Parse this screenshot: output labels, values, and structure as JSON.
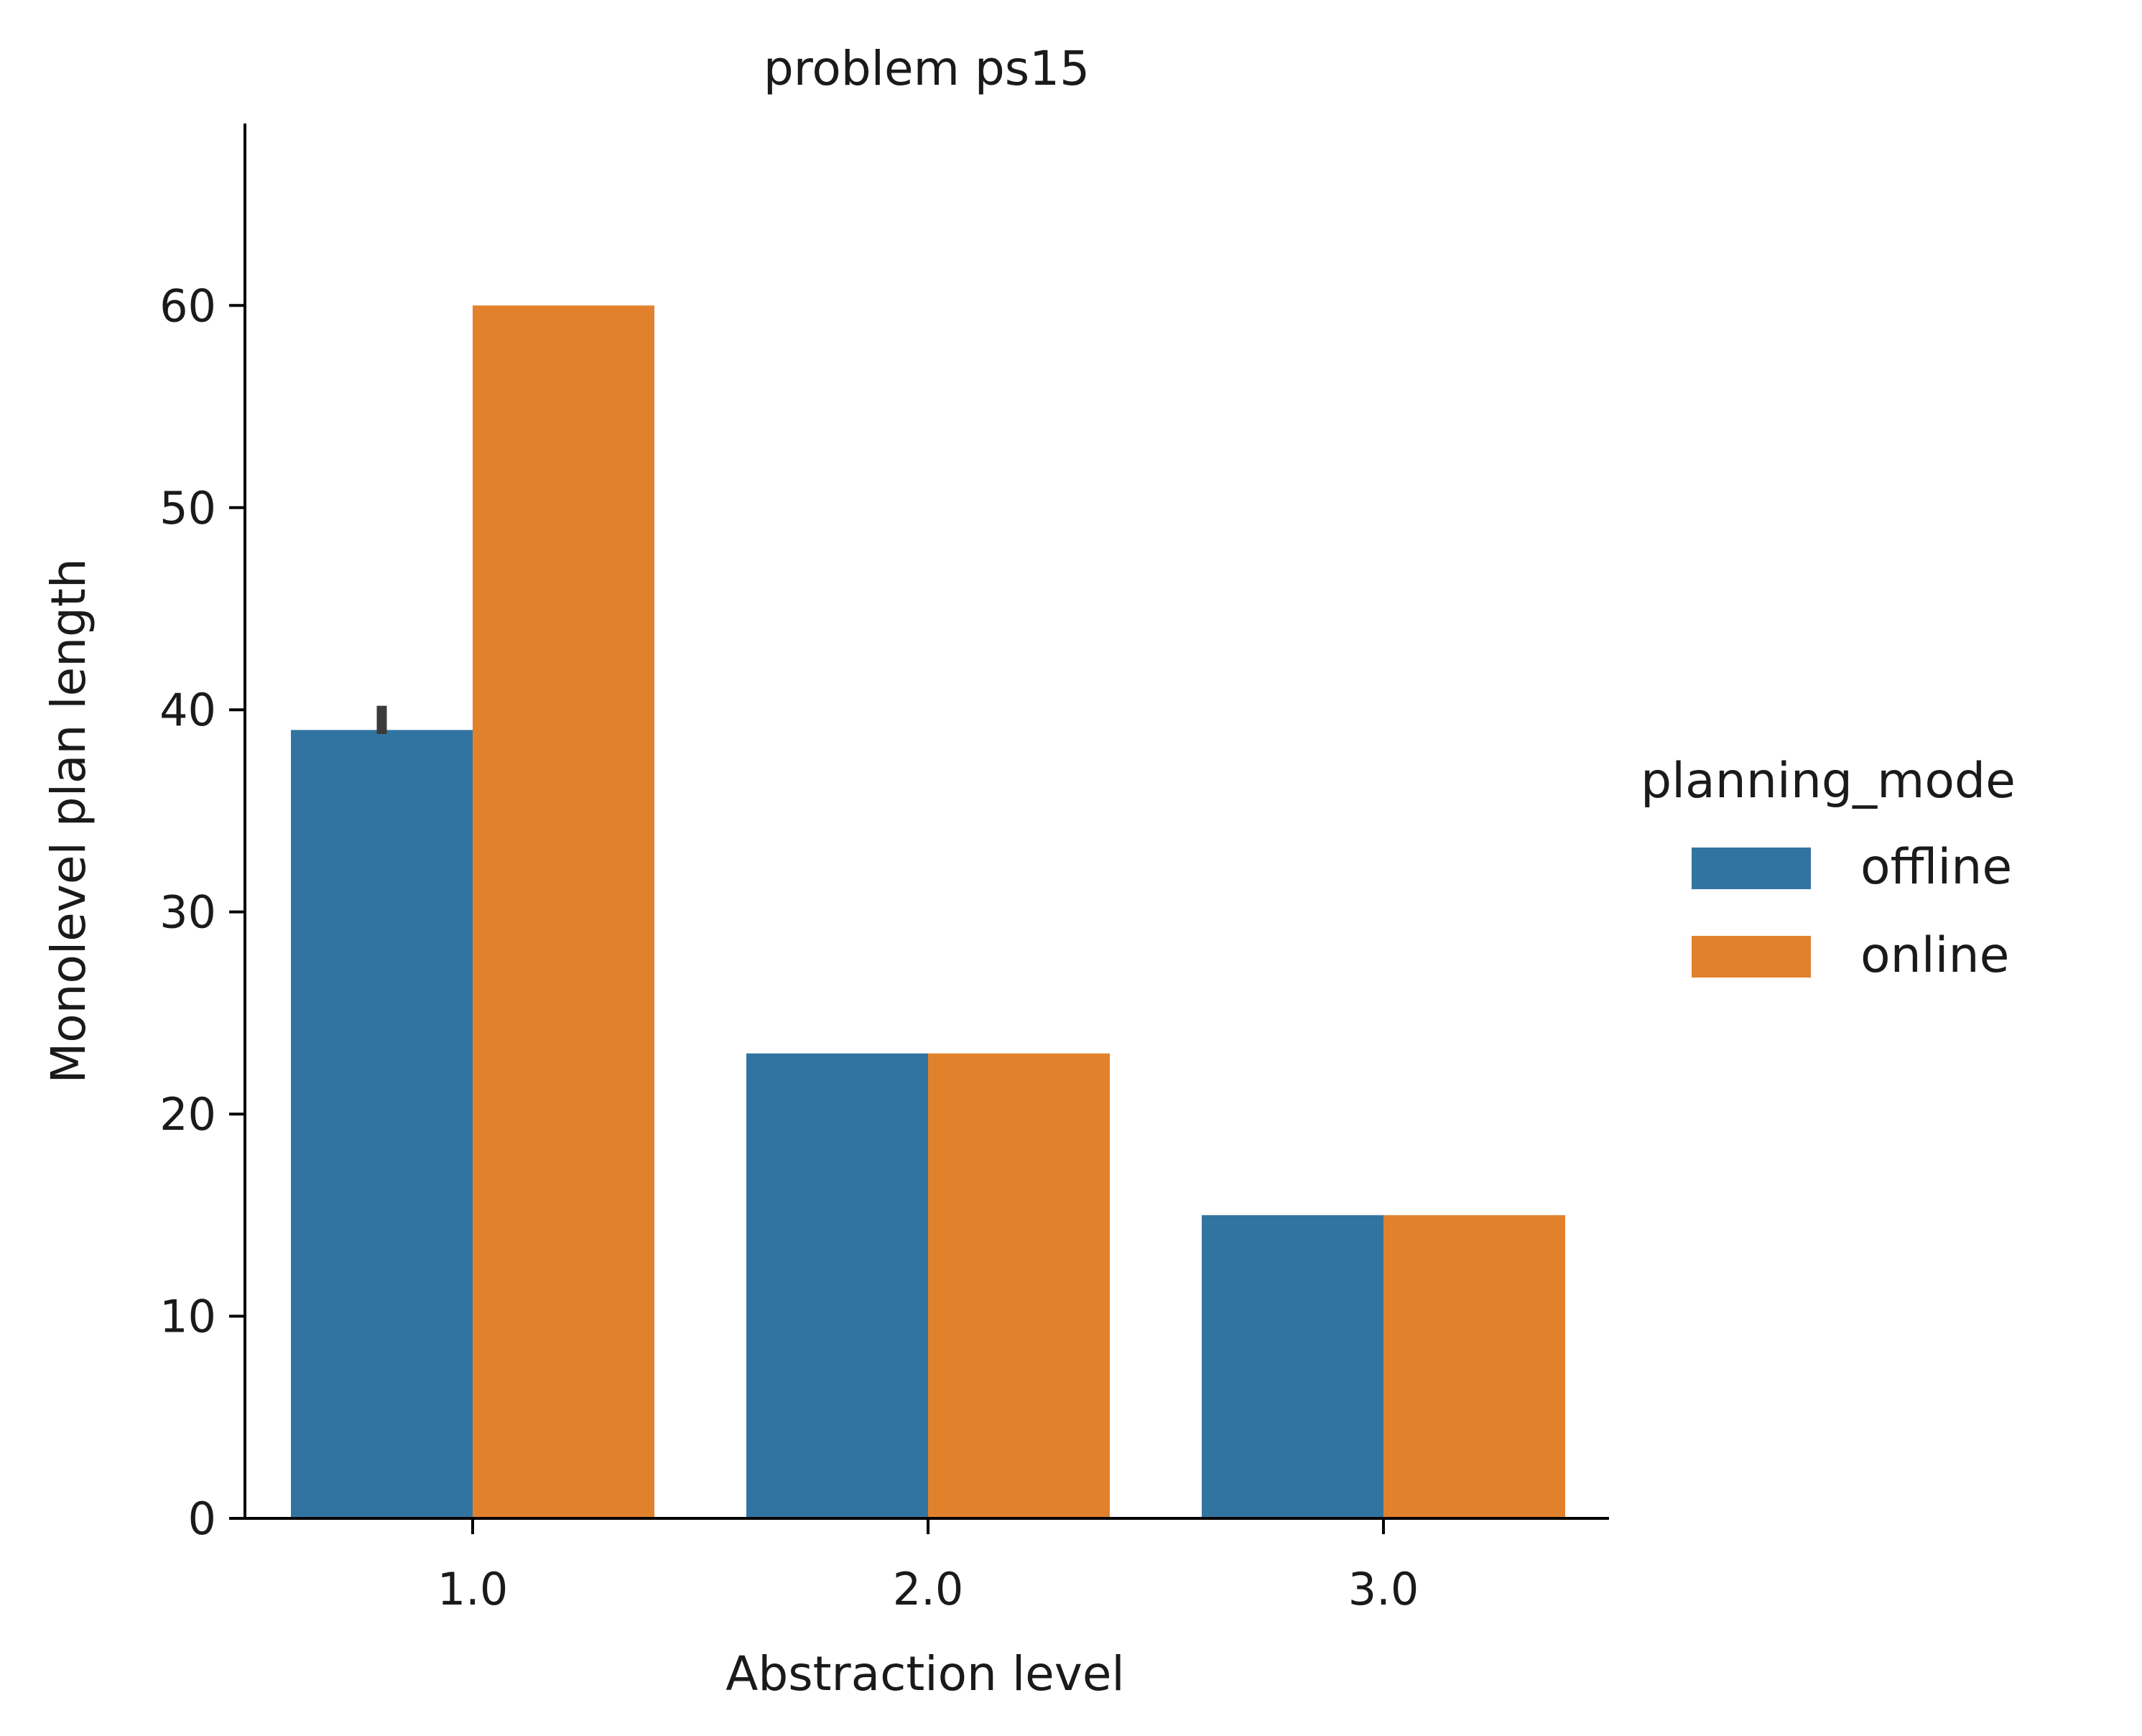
{
  "chart_data": {
    "type": "bar",
    "title": "problem ps15",
    "xlabel": "Abstraction level",
    "ylabel": "Monolevel plan length",
    "categories": [
      "1.0",
      "2.0",
      "3.0"
    ],
    "series": [
      {
        "name": "offline",
        "color": "#3274a1",
        "values": [
          39,
          23,
          15
        ],
        "error": [
          [
            38.8,
            40.2
          ],
          null,
          null
        ]
      },
      {
        "name": "online",
        "color": "#e1812c",
        "values": [
          60,
          23,
          15
        ],
        "error": [
          null,
          null,
          null
        ]
      }
    ],
    "ylim": [
      0,
      69
    ],
    "yticks": [
      0,
      10,
      20,
      30,
      40,
      50,
      60
    ],
    "grid": false,
    "legend": {
      "title": "planning_mode",
      "placement": "right"
    }
  }
}
